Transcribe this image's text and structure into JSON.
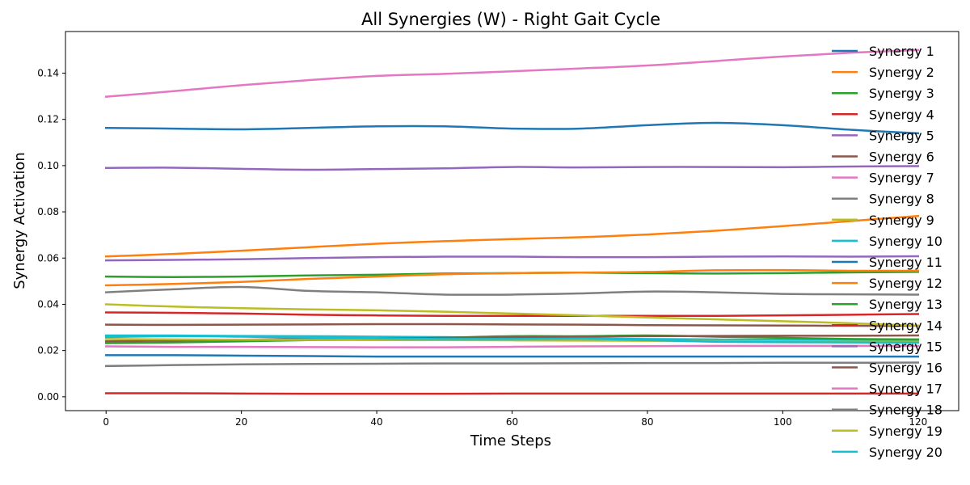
{
  "chart_data": {
    "type": "line",
    "title": "All Synergies (W) - Right Gait Cycle",
    "xlabel": "Time Steps",
    "ylabel": "Synergy Activation",
    "xlim": [
      -6,
      126
    ],
    "ylim": [
      -0.006,
      0.158
    ],
    "xticks": [
      0,
      20,
      40,
      60,
      80,
      100,
      120
    ],
    "xtick_labels": [
      "0",
      "20",
      "40",
      "60",
      "80",
      "100",
      "120"
    ],
    "yticks": [
      0.0,
      0.02,
      0.04,
      0.06,
      0.08,
      0.1,
      0.12,
      0.14
    ],
    "ytick_labels": [
      "0.00",
      "0.02",
      "0.04",
      "0.06",
      "0.08",
      "0.10",
      "0.12",
      "0.14"
    ],
    "grid": false,
    "legend_position": "right",
    "x": [
      0,
      10,
      20,
      30,
      40,
      50,
      60,
      70,
      80,
      90,
      100,
      110,
      120
    ],
    "series": [
      {
        "name": "Synergy 1",
        "color": "#1f77b4",
        "values": [
          0.1163,
          0.116,
          0.1157,
          0.1163,
          0.117,
          0.117,
          0.116,
          0.116,
          0.1175,
          0.1185,
          0.1175,
          0.1155,
          0.114
        ]
      },
      {
        "name": "Synergy 2",
        "color": "#ff7f0e",
        "values": [
          0.0607,
          0.0618,
          0.0632,
          0.0647,
          0.0662,
          0.0673,
          0.0682,
          0.069,
          0.0702,
          0.0718,
          0.0738,
          0.076,
          0.0782
        ]
      },
      {
        "name": "Synergy 3",
        "color": "#2ca02c",
        "values": [
          0.052,
          0.0518,
          0.052,
          0.0525,
          0.0528,
          0.0533,
          0.0535,
          0.0537,
          0.0535,
          0.0533,
          0.0535,
          0.0538,
          0.054
        ]
      },
      {
        "name": "Synergy 4",
        "color": "#d62728",
        "values": [
          0.0365,
          0.0363,
          0.036,
          0.0355,
          0.0352,
          0.035,
          0.035,
          0.035,
          0.035,
          0.035,
          0.0352,
          0.0355,
          0.0358
        ]
      },
      {
        "name": "Synergy 5",
        "color": "#9467bd",
        "values": [
          0.099,
          0.0991,
          0.0986,
          0.0982,
          0.0985,
          0.0988,
          0.0994,
          0.0992,
          0.0994,
          0.0994,
          0.0993,
          0.0996,
          0.0998
        ]
      },
      {
        "name": "Synergy 6",
        "color": "#8c564b",
        "values": [
          0.0312,
          0.0311,
          0.0312,
          0.0313,
          0.0314,
          0.0314,
          0.0313,
          0.0312,
          0.031,
          0.0309,
          0.0308,
          0.0307,
          0.0307
        ]
      },
      {
        "name": "Synergy 7",
        "color": "#e377c2",
        "values": [
          0.1298,
          0.1322,
          0.1348,
          0.137,
          0.1388,
          0.1397,
          0.1408,
          0.142,
          0.1433,
          0.1452,
          0.1472,
          0.1488,
          0.15
        ]
      },
      {
        "name": "Synergy 8",
        "color": "#7f7f7f",
        "values": [
          0.0452,
          0.0465,
          0.0475,
          0.0458,
          0.0452,
          0.0442,
          0.0442,
          0.0447,
          0.0455,
          0.0452,
          0.0445,
          0.0443,
          0.0442
        ]
      },
      {
        "name": "Synergy 9",
        "color": "#bcbd22",
        "values": [
          0.04,
          0.039,
          0.0383,
          0.0378,
          0.0374,
          0.0368,
          0.036,
          0.0352,
          0.0343,
          0.0335,
          0.0327,
          0.0318,
          0.0308
        ]
      },
      {
        "name": "Synergy 10",
        "color": "#17becf",
        "values": [
          0.0265,
          0.0265,
          0.0263,
          0.0262,
          0.026,
          0.0258,
          0.0255,
          0.0253,
          0.025,
          0.0248,
          0.0247,
          0.0246,
          0.0245
        ]
      },
      {
        "name": "Synergy 11",
        "color": "#1f77b4",
        "values": [
          0.018,
          0.018,
          0.0178,
          0.0176,
          0.0174,
          0.0174,
          0.0174,
          0.0174,
          0.0174,
          0.0174,
          0.0174,
          0.0174,
          0.0174
        ]
      },
      {
        "name": "Synergy 12",
        "color": "#ff7f0e",
        "values": [
          0.0482,
          0.0488,
          0.0497,
          0.051,
          0.052,
          0.053,
          0.0535,
          0.0537,
          0.054,
          0.0547,
          0.0548,
          0.0545,
          0.0545
        ]
      },
      {
        "name": "Synergy 13",
        "color": "#2ca02c",
        "values": [
          0.0232,
          0.0235,
          0.024,
          0.0245,
          0.0248,
          0.0255,
          0.0262,
          0.0262,
          0.0265,
          0.026,
          0.0255,
          0.025,
          0.0248
        ]
      },
      {
        "name": "Synergy 14",
        "color": "#d62728",
        "values": [
          0.0015,
          0.0015,
          0.0014,
          0.0013,
          0.0013,
          0.0013,
          0.0014,
          0.0014,
          0.0014,
          0.0014,
          0.0014,
          0.0014,
          0.0014
        ]
      },
      {
        "name": "Synergy 15",
        "color": "#9467bd",
        "values": [
          0.059,
          0.0592,
          0.0595,
          0.06,
          0.0604,
          0.0606,
          0.0606,
          0.0604,
          0.0604,
          0.0606,
          0.0607,
          0.0606,
          0.0608
        ]
      },
      {
        "name": "Synergy 16",
        "color": "#8c564b",
        "values": [
          0.024,
          0.0243,
          0.0247,
          0.025,
          0.0252,
          0.0255,
          0.0257,
          0.026,
          0.0262,
          0.0263,
          0.0264,
          0.0264,
          0.0265
        ]
      },
      {
        "name": "Synergy 17",
        "color": "#e377c2",
        "values": [
          0.0218,
          0.0216,
          0.0216,
          0.0215,
          0.0214,
          0.0214,
          0.0216,
          0.0218,
          0.0219,
          0.022,
          0.022,
          0.022,
          0.022
        ]
      },
      {
        "name": "Synergy 18",
        "color": "#7f7f7f",
        "values": [
          0.0133,
          0.0137,
          0.014,
          0.0142,
          0.0143,
          0.0144,
          0.0144,
          0.0145,
          0.0146,
          0.0146,
          0.0147,
          0.0147,
          0.0148
        ]
      },
      {
        "name": "Synergy 19",
        "color": "#bcbd22",
        "values": [
          0.025,
          0.0248,
          0.0247,
          0.0246,
          0.0245,
          0.0245,
          0.0244,
          0.0243,
          0.0242,
          0.0241,
          0.024,
          0.0239,
          0.0238
        ]
      },
      {
        "name": "Synergy 20",
        "color": "#17becf",
        "values": [
          0.0258,
          0.0262,
          0.026,
          0.0256,
          0.0252,
          0.025,
          0.025,
          0.0251,
          0.0245,
          0.0238,
          0.0236,
          0.0235,
          0.0234
        ]
      }
    ]
  }
}
